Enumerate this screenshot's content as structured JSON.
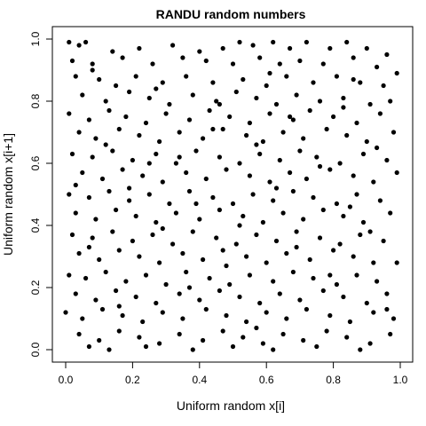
{
  "chart_data": {
    "type": "scatter",
    "title": "RANDU random numbers",
    "xlabel": "Uniform random x[i]",
    "ylabel": "Uniform random x[i+1]",
    "xlim": [
      0,
      1
    ],
    "ylim": [
      0,
      1
    ],
    "xticks": [
      "0.0",
      "0.2",
      "0.4",
      "0.6",
      "0.8",
      "1.0"
    ],
    "yticks": [
      "0.0",
      "0.2",
      "0.4",
      "0.6",
      "0.8",
      "1.0"
    ],
    "grid": false,
    "legend": "none",
    "marker_color": "#000000",
    "points": [
      [
        0.01,
        0.99
      ],
      [
        0.04,
        0.98
      ],
      [
        0.06,
        0.99
      ],
      [
        0.14,
        0.96
      ],
      [
        0.22,
        0.97
      ],
      [
        0.32,
        0.98
      ],
      [
        0.4,
        0.96
      ],
      [
        0.47,
        0.97
      ],
      [
        0.52,
        0.99
      ],
      [
        0.56,
        0.98
      ],
      [
        0.62,
        0.99
      ],
      [
        0.67,
        0.97
      ],
      [
        0.72,
        0.99
      ],
      [
        0.79,
        0.97
      ],
      [
        0.84,
        0.99
      ],
      [
        0.9,
        0.97
      ],
      [
        0.96,
        0.95
      ],
      [
        0.02,
        0.93
      ],
      [
        0.08,
        0.92
      ],
      [
        0.17,
        0.94
      ],
      [
        0.26,
        0.92
      ],
      [
        0.35,
        0.94
      ],
      [
        0.42,
        0.93
      ],
      [
        0.5,
        0.92
      ],
      [
        0.58,
        0.94
      ],
      [
        0.64,
        0.92
      ],
      [
        0.7,
        0.93
      ],
      [
        0.77,
        0.92
      ],
      [
        0.86,
        0.94
      ],
      [
        0.93,
        0.91
      ],
      [
        0.99,
        0.89
      ],
      [
        0.03,
        0.88
      ],
      [
        0.1,
        0.87
      ],
      [
        0.15,
        0.85
      ],
      [
        0.21,
        0.88
      ],
      [
        0.29,
        0.86
      ],
      [
        0.36,
        0.88
      ],
      [
        0.44,
        0.86
      ],
      [
        0.53,
        0.87
      ],
      [
        0.6,
        0.85
      ],
      [
        0.66,
        0.88
      ],
      [
        0.74,
        0.86
      ],
      [
        0.81,
        0.88
      ],
      [
        0.88,
        0.86
      ],
      [
        0.95,
        0.85
      ],
      [
        0.05,
        0.82
      ],
      [
        0.12,
        0.8
      ],
      [
        0.19,
        0.83
      ],
      [
        0.25,
        0.81
      ],
      [
        0.31,
        0.79
      ],
      [
        0.38,
        0.82
      ],
      [
        0.45,
        0.8
      ],
      [
        0.51,
        0.83
      ],
      [
        0.57,
        0.81
      ],
      [
        0.63,
        0.79
      ],
      [
        0.69,
        0.82
      ],
      [
        0.76,
        0.8
      ],
      [
        0.83,
        0.81
      ],
      [
        0.91,
        0.79
      ],
      [
        0.97,
        0.8
      ],
      [
        0.01,
        0.76
      ],
      [
        0.07,
        0.74
      ],
      [
        0.13,
        0.77
      ],
      [
        0.18,
        0.75
      ],
      [
        0.24,
        0.73
      ],
      [
        0.3,
        0.76
      ],
      [
        0.37,
        0.74
      ],
      [
        0.43,
        0.77
      ],
      [
        0.49,
        0.75
      ],
      [
        0.55,
        0.73
      ],
      [
        0.61,
        0.76
      ],
      [
        0.68,
        0.74
      ],
      [
        0.73,
        0.77
      ],
      [
        0.8,
        0.75
      ],
      [
        0.87,
        0.73
      ],
      [
        0.94,
        0.76
      ],
      [
        0.04,
        0.7
      ],
      [
        0.09,
        0.68
      ],
      [
        0.16,
        0.71
      ],
      [
        0.22,
        0.69
      ],
      [
        0.28,
        0.67
      ],
      [
        0.34,
        0.7
      ],
      [
        0.41,
        0.68
      ],
      [
        0.47,
        0.71
      ],
      [
        0.54,
        0.69
      ],
      [
        0.59,
        0.67
      ],
      [
        0.65,
        0.7
      ],
      [
        0.71,
        0.68
      ],
      [
        0.78,
        0.71
      ],
      [
        0.84,
        0.69
      ],
      [
        0.9,
        0.67
      ],
      [
        0.98,
        0.7
      ],
      [
        0.02,
        0.63
      ],
      [
        0.08,
        0.62
      ],
      [
        0.14,
        0.64
      ],
      [
        0.2,
        0.61
      ],
      [
        0.27,
        0.63
      ],
      [
        0.33,
        0.6
      ],
      [
        0.39,
        0.64
      ],
      [
        0.46,
        0.62
      ],
      [
        0.52,
        0.6
      ],
      [
        0.58,
        0.63
      ],
      [
        0.64,
        0.61
      ],
      [
        0.7,
        0.64
      ],
      [
        0.75,
        0.62
      ],
      [
        0.82,
        0.6
      ],
      [
        0.89,
        0.63
      ],
      [
        0.96,
        0.61
      ],
      [
        0.05,
        0.57
      ],
      [
        0.11,
        0.55
      ],
      [
        0.17,
        0.58
      ],
      [
        0.23,
        0.56
      ],
      [
        0.29,
        0.54
      ],
      [
        0.36,
        0.57
      ],
      [
        0.42,
        0.55
      ],
      [
        0.48,
        0.58
      ],
      [
        0.55,
        0.56
      ],
      [
        0.61,
        0.54
      ],
      [
        0.67,
        0.57
      ],
      [
        0.72,
        0.55
      ],
      [
        0.79,
        0.58
      ],
      [
        0.86,
        0.56
      ],
      [
        0.92,
        0.54
      ],
      [
        0.99,
        0.57
      ],
      [
        0.01,
        0.5
      ],
      [
        0.07,
        0.49
      ],
      [
        0.13,
        0.51
      ],
      [
        0.19,
        0.48
      ],
      [
        0.25,
        0.5
      ],
      [
        0.31,
        0.47
      ],
      [
        0.37,
        0.51
      ],
      [
        0.44,
        0.49
      ],
      [
        0.5,
        0.47
      ],
      [
        0.56,
        0.5
      ],
      [
        0.62,
        0.48
      ],
      [
        0.68,
        0.51
      ],
      [
        0.74,
        0.49
      ],
      [
        0.81,
        0.47
      ],
      [
        0.87,
        0.5
      ],
      [
        0.94,
        0.48
      ],
      [
        0.03,
        0.44
      ],
      [
        0.09,
        0.42
      ],
      [
        0.15,
        0.45
      ],
      [
        0.21,
        0.43
      ],
      [
        0.27,
        0.41
      ],
      [
        0.33,
        0.44
      ],
      [
        0.4,
        0.42
      ],
      [
        0.46,
        0.45
      ],
      [
        0.53,
        0.43
      ],
      [
        0.59,
        0.41
      ],
      [
        0.65,
        0.44
      ],
      [
        0.71,
        0.42
      ],
      [
        0.77,
        0.45
      ],
      [
        0.83,
        0.43
      ],
      [
        0.89,
        0.41
      ],
      [
        0.97,
        0.44
      ],
      [
        0.02,
        0.37
      ],
      [
        0.08,
        0.36
      ],
      [
        0.14,
        0.38
      ],
      [
        0.2,
        0.35
      ],
      [
        0.26,
        0.37
      ],
      [
        0.32,
        0.34
      ],
      [
        0.38,
        0.38
      ],
      [
        0.45,
        0.36
      ],
      [
        0.51,
        0.34
      ],
      [
        0.57,
        0.37
      ],
      [
        0.63,
        0.35
      ],
      [
        0.69,
        0.38
      ],
      [
        0.76,
        0.36
      ],
      [
        0.82,
        0.34
      ],
      [
        0.88,
        0.37
      ],
      [
        0.95,
        0.35
      ],
      [
        0.04,
        0.31
      ],
      [
        0.1,
        0.29
      ],
      [
        0.16,
        0.32
      ],
      [
        0.22,
        0.3
      ],
      [
        0.28,
        0.28
      ],
      [
        0.35,
        0.31
      ],
      [
        0.41,
        0.29
      ],
      [
        0.47,
        0.32
      ],
      [
        0.54,
        0.3
      ],
      [
        0.6,
        0.28
      ],
      [
        0.66,
        0.31
      ],
      [
        0.73,
        0.29
      ],
      [
        0.8,
        0.32
      ],
      [
        0.86,
        0.3
      ],
      [
        0.92,
        0.28
      ],
      [
        0.99,
        0.28
      ],
      [
        0.01,
        0.24
      ],
      [
        0.06,
        0.23
      ],
      [
        0.12,
        0.25
      ],
      [
        0.18,
        0.22
      ],
      [
        0.24,
        0.24
      ],
      [
        0.3,
        0.21
      ],
      [
        0.36,
        0.25
      ],
      [
        0.43,
        0.23
      ],
      [
        0.49,
        0.21
      ],
      [
        0.55,
        0.24
      ],
      [
        0.62,
        0.22
      ],
      [
        0.68,
        0.25
      ],
      [
        0.74,
        0.23
      ],
      [
        0.81,
        0.21
      ],
      [
        0.87,
        0.24
      ],
      [
        0.93,
        0.22
      ],
      [
        0.03,
        0.18
      ],
      [
        0.09,
        0.16
      ],
      [
        0.15,
        0.19
      ],
      [
        0.21,
        0.17
      ],
      [
        0.27,
        0.15
      ],
      [
        0.34,
        0.18
      ],
      [
        0.4,
        0.16
      ],
      [
        0.46,
        0.19
      ],
      [
        0.52,
        0.17
      ],
      [
        0.58,
        0.15
      ],
      [
        0.64,
        0.18
      ],
      [
        0.7,
        0.16
      ],
      [
        0.77,
        0.19
      ],
      [
        0.83,
        0.17
      ],
      [
        0.9,
        0.15
      ],
      [
        0.96,
        0.18
      ],
      [
        0.0,
        0.12
      ],
      [
        0.05,
        0.1
      ],
      [
        0.11,
        0.13
      ],
      [
        0.17,
        0.11
      ],
      [
        0.23,
        0.09
      ],
      [
        0.29,
        0.12
      ],
      [
        0.35,
        0.1
      ],
      [
        0.42,
        0.13
      ],
      [
        0.48,
        0.11
      ],
      [
        0.54,
        0.09
      ],
      [
        0.6,
        0.12
      ],
      [
        0.66,
        0.1
      ],
      [
        0.72,
        0.13
      ],
      [
        0.79,
        0.11
      ],
      [
        0.85,
        0.09
      ],
      [
        0.92,
        0.12
      ],
      [
        0.98,
        0.1
      ],
      [
        0.04,
        0.05
      ],
      [
        0.1,
        0.03
      ],
      [
        0.16,
        0.06
      ],
      [
        0.22,
        0.04
      ],
      [
        0.28,
        0.02
      ],
      [
        0.34,
        0.05
      ],
      [
        0.41,
        0.03
      ],
      [
        0.47,
        0.06
      ],
      [
        0.53,
        0.04
      ],
      [
        0.59,
        0.02
      ],
      [
        0.65,
        0.05
      ],
      [
        0.71,
        0.03
      ],
      [
        0.78,
        0.06
      ],
      [
        0.84,
        0.04
      ],
      [
        0.91,
        0.02
      ],
      [
        0.97,
        0.05
      ],
      [
        0.07,
        0.01
      ],
      [
        0.13,
        0.0
      ],
      [
        0.24,
        0.01
      ],
      [
        0.38,
        0.0
      ],
      [
        0.5,
        0.01
      ],
      [
        0.62,
        0.0
      ],
      [
        0.75,
        0.01
      ],
      [
        0.88,
        0.0
      ],
      [
        0.08,
        0.9
      ],
      [
        0.27,
        0.84
      ],
      [
        0.46,
        0.79
      ],
      [
        0.61,
        0.89
      ],
      [
        0.83,
        0.78
      ],
      [
        0.12,
        0.66
      ],
      [
        0.34,
        0.62
      ],
      [
        0.57,
        0.66
      ],
      [
        0.76,
        0.59
      ],
      [
        0.93,
        0.65
      ],
      [
        0.19,
        0.52
      ],
      [
        0.39,
        0.47
      ],
      [
        0.63,
        0.52
      ],
      [
        0.85,
        0.46
      ],
      [
        0.07,
        0.33
      ],
      [
        0.29,
        0.39
      ],
      [
        0.48,
        0.27
      ],
      [
        0.69,
        0.33
      ],
      [
        0.91,
        0.38
      ],
      [
        0.16,
        0.14
      ],
      [
        0.37,
        0.2
      ],
      [
        0.57,
        0.07
      ],
      [
        0.79,
        0.24
      ],
      [
        0.96,
        0.13
      ],
      [
        0.25,
        0.6
      ],
      [
        0.44,
        0.71
      ],
      [
        0.67,
        0.75
      ],
      [
        0.86,
        0.87
      ],
      [
        0.03,
        0.53
      ],
      [
        0.52,
        0.4
      ]
    ]
  }
}
